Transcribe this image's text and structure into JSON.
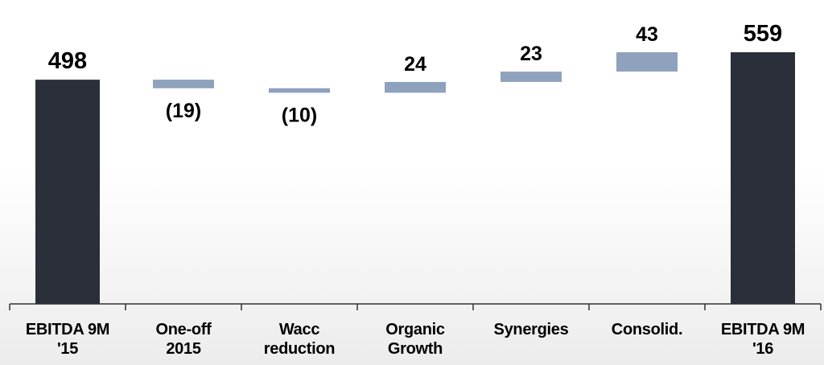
{
  "chart_data": {
    "type": "waterfall",
    "categories": [
      "EBITDA 9M\n'15",
      "One-off\n2015",
      "Wacc\nreduction",
      "Organic\nGrowth",
      "Synergies",
      "Consolid.",
      "EBITDA 9M\n'16"
    ],
    "values": [
      498,
      -19,
      -10,
      24,
      23,
      43,
      559
    ],
    "value_labels": [
      "498",
      "(19)",
      "(10)",
      "24",
      "23",
      "43",
      "559"
    ],
    "bar_kinds": [
      "total",
      "change",
      "change",
      "change",
      "change",
      "change",
      "total"
    ],
    "colors": {
      "total": "#2a2f3a",
      "change": "#8fa2bd"
    },
    "ylim": [
      0,
      675
    ]
  }
}
